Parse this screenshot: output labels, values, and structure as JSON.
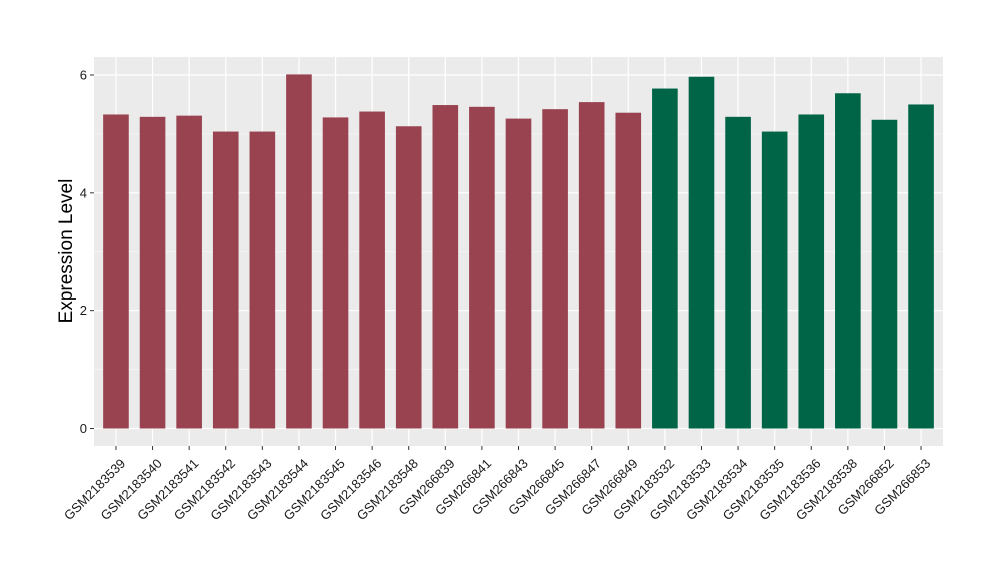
{
  "chart_data": {
    "type": "bar",
    "title": "",
    "xlabel": "",
    "ylabel": "Expression Level",
    "ylim": [
      0,
      6.3
    ],
    "yticks": [
      0,
      2,
      4,
      6
    ],
    "grid": true,
    "background": "#ebebeb",
    "colors": {
      "group_a": "#994350",
      "group_b": "#006446"
    },
    "categories": [
      "GSM2183539",
      "GSM2183540",
      "GSM2183541",
      "GSM2183542",
      "GSM2183543",
      "GSM2183544",
      "GSM2183545",
      "GSM2183546",
      "GSM2183548",
      "GSM266839",
      "GSM266841",
      "GSM266843",
      "GSM266845",
      "GSM266847",
      "GSM266849",
      "GSM2183532",
      "GSM2183533",
      "GSM2183534",
      "GSM2183535",
      "GSM2183536",
      "GSM2183538",
      "GSM266852",
      "GSM266853"
    ],
    "values": [
      5.33,
      5.29,
      5.31,
      5.04,
      5.04,
      6.01,
      5.28,
      5.38,
      5.13,
      5.49,
      5.46,
      5.26,
      5.42,
      5.54,
      5.36,
      5.77,
      5.97,
      5.29,
      5.04,
      5.33,
      5.69,
      5.24,
      5.5
    ],
    "groups": [
      "a",
      "a",
      "a",
      "a",
      "a",
      "a",
      "a",
      "a",
      "a",
      "a",
      "a",
      "a",
      "a",
      "a",
      "a",
      "b",
      "b",
      "b",
      "b",
      "b",
      "b",
      "b",
      "b"
    ]
  }
}
